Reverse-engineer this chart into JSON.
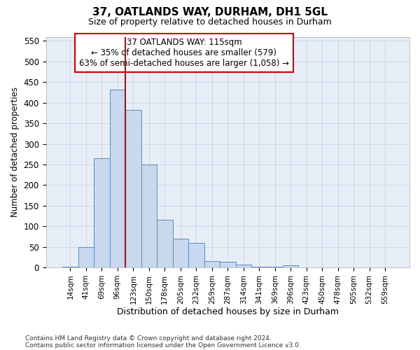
{
  "title_line1": "37, OATLANDS WAY, DURHAM, DH1 5GL",
  "title_line2": "Size of property relative to detached houses in Durham",
  "xlabel": "Distribution of detached houses by size in Durham",
  "ylabel": "Number of detached properties",
  "categories": [
    "14sqm",
    "41sqm",
    "69sqm",
    "96sqm",
    "123sqm",
    "150sqm",
    "178sqm",
    "205sqm",
    "232sqm",
    "259sqm",
    "287sqm",
    "314sqm",
    "341sqm",
    "369sqm",
    "396sqm",
    "423sqm",
    "450sqm",
    "478sqm",
    "505sqm",
    "532sqm",
    "559sqm"
  ],
  "values": [
    2,
    50,
    265,
    432,
    382,
    250,
    115,
    70,
    60,
    15,
    13,
    7,
    2,
    2,
    5,
    1,
    1,
    0,
    1,
    0,
    1
  ],
  "bar_color": "#c8d8ee",
  "bar_edge_color": "#5a8abf",
  "vline_color": "#cc0000",
  "vline_pos": 3.5,
  "annotation_text": "37 OATLANDS WAY: 115sqm\n← 35% of detached houses are smaller (579)\n63% of semi-detached houses are larger (1,058) →",
  "annotation_box_color": "#cc0000",
  "annotation_bg": "#ffffff",
  "ylim": [
    0,
    560
  ],
  "yticks": [
    0,
    50,
    100,
    150,
    200,
    250,
    300,
    350,
    400,
    450,
    500,
    550
  ],
  "footnote1": "Contains HM Land Registry data © Crown copyright and database right 2024.",
  "footnote2": "Contains public sector information licensed under the Open Government Licence v3.0.",
  "grid_color": "#c8d4e4",
  "plot_bg_color": "#e8eef8",
  "fig_bg_color": "#ffffff"
}
